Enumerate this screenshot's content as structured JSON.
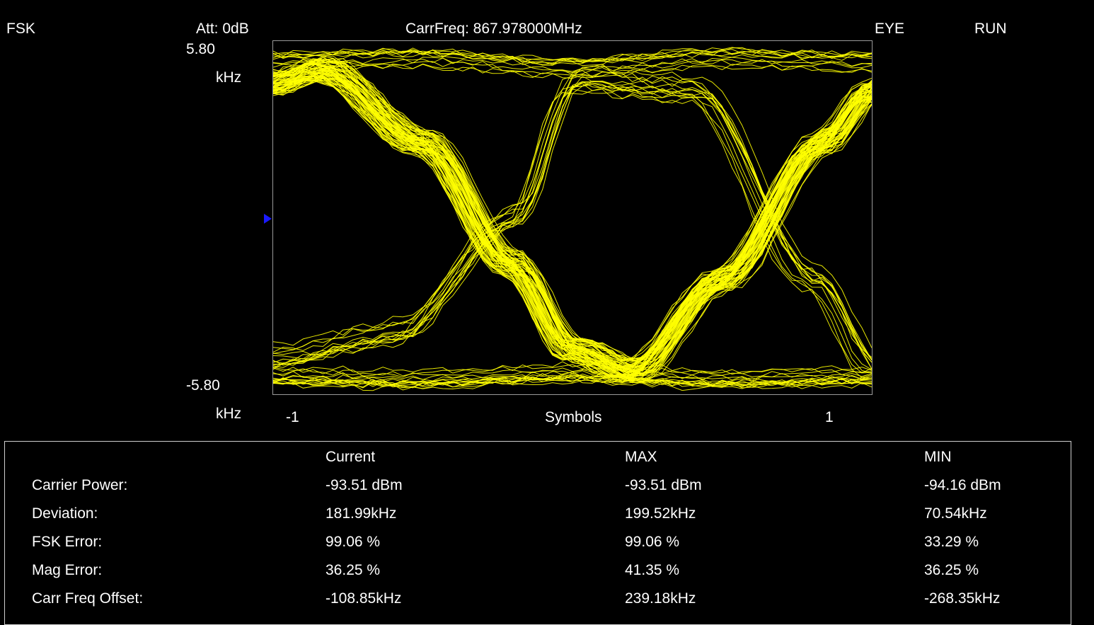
{
  "header": {
    "mode": "FSK",
    "attenuation": "Att: 0dB",
    "carrier_frequency": "CarrFreq: 867.978000MHz",
    "view": "EYE",
    "run_state": "RUN"
  },
  "colors": {
    "trace": "#ffff00",
    "marker": "#1a1aff",
    "frame": "#9a9a9a",
    "background": "#000000"
  },
  "chart_data": {
    "type": "line",
    "ylim": [
      -5.8,
      5.8
    ],
    "xlim": [
      -1,
      1
    ],
    "ymax_label": "5.80",
    "ymin_label": "-5.80",
    "yunit_top": "kHz",
    "yunit_bottom": "kHz",
    "xlabel": "Symbols",
    "xtick_min_label": "-1",
    "xtick_max_label": "1",
    "series": [
      {
        "x": [
          -1.0,
          -0.84,
          -0.5,
          -0.2,
          0.0,
          0.2,
          0.5,
          0.84,
          1.0
        ],
        "y": [
          4.4,
          4.9,
          2.5,
          -1.5,
          -4.3,
          -5.0,
          -2.0,
          2.5,
          4.2
        ]
      },
      {
        "x": [
          -1.0,
          -0.6,
          -0.2,
          0.0,
          0.4,
          0.8,
          1.0
        ],
        "y": [
          -4.6,
          -3.8,
          0.0,
          4.5,
          4.2,
          -2.0,
          -4.8
        ]
      },
      {
        "x": [
          -1.0,
          -0.5,
          0.0,
          0.5,
          1.0
        ],
        "y": [
          5.2,
          5.3,
          5.0,
          5.3,
          5.2
        ]
      },
      {
        "x": [
          -1.0,
          -0.5,
          0.0,
          0.5,
          1.0
        ],
        "y": [
          -5.2,
          -5.3,
          -5.1,
          -5.3,
          -5.2
        ]
      }
    ]
  },
  "results_table": {
    "headers": [
      "Current",
      "MAX",
      "MIN"
    ],
    "rows": [
      {
        "label": "Carrier Power:",
        "current": "-93.51 dBm",
        "max": "-93.51 dBm",
        "min": "-94.16 dBm"
      },
      {
        "label": "Deviation:",
        "current": "181.99kHz",
        "max": "199.52kHz",
        "min": "70.54kHz"
      },
      {
        "label": "FSK Error:",
        "current": "99.06 %",
        "max": "99.06 %",
        "min": "33.29 %"
      },
      {
        "label": "Mag Error:",
        "current": "36.25 %",
        "max": "41.35 %",
        "min": "36.25 %"
      },
      {
        "label": "Carr Freq Offset:",
        "current": "-108.85kHz",
        "max": "239.18kHz",
        "min": "-268.35kHz"
      }
    ]
  }
}
